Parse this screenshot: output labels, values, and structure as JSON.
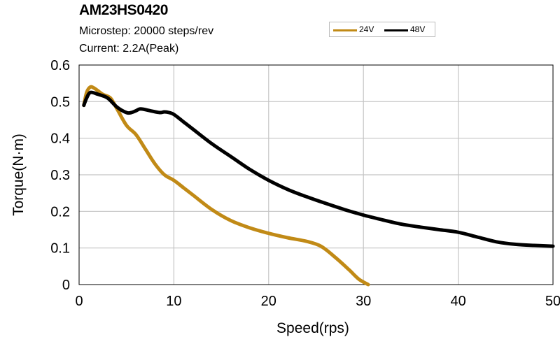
{
  "header": {
    "title": "AM23HS0420",
    "subtitle1": "Microstep: 20000 steps/rev",
    "subtitle2": "Current: 2.2A(Peak)"
  },
  "chart_data": {
    "type": "line",
    "title": "AM23HS0420",
    "xlabel": "Speed(rps)",
    "ylabel": "Torque(N·m)",
    "xlim": [
      0,
      50
    ],
    "ylim": [
      0,
      0.6
    ],
    "xticks": [
      0,
      10,
      20,
      30,
      40,
      50
    ],
    "xtick_labels": [
      "0",
      "10",
      "20",
      "30",
      "40",
      "50"
    ],
    "yticks": [
      0,
      0.1,
      0.2,
      0.3,
      0.4,
      0.5,
      0.6
    ],
    "ytick_labels": [
      "0",
      "0.1",
      "0.2",
      "0.3",
      "0.4",
      "0.5",
      "0.6"
    ],
    "grid": true,
    "legend_position": "top-right",
    "series": [
      {
        "name": "24V",
        "color": "#c18a16",
        "x": [
          0.5,
          0.8,
          1.2,
          1.7,
          2.5,
          3.3,
          4.0,
          5.0,
          6.0,
          7.0,
          8.0,
          9.0,
          10.0,
          11.0,
          12.0,
          14.0,
          16.0,
          18.0,
          20.0,
          22.0,
          24.0,
          25.5,
          27.0,
          28.5,
          29.5,
          30.5
        ],
        "values": [
          0.49,
          0.525,
          0.54,
          0.535,
          0.52,
          0.51,
          0.48,
          0.435,
          0.41,
          0.37,
          0.33,
          0.3,
          0.285,
          0.265,
          0.245,
          0.205,
          0.175,
          0.155,
          0.14,
          0.128,
          0.118,
          0.105,
          0.075,
          0.04,
          0.015,
          0.0
        ]
      },
      {
        "name": "48V",
        "color": "#000000",
        "x": [
          0.5,
          0.8,
          1.2,
          2.0,
          3.0,
          4.0,
          5.0,
          5.5,
          6.0,
          6.5,
          7.5,
          8.5,
          9.0,
          9.5,
          10.0,
          11.0,
          12.0,
          14.0,
          16.0,
          18.0,
          20.0,
          22.0,
          24.0,
          26.0,
          28.0,
          30.0,
          32.0,
          34.0,
          36.0,
          38.0,
          40.0,
          42.0,
          44.0,
          46.0,
          48.0,
          50.0
        ],
        "values": [
          0.49,
          0.51,
          0.525,
          0.52,
          0.51,
          0.485,
          0.47,
          0.47,
          0.475,
          0.48,
          0.475,
          0.47,
          0.472,
          0.47,
          0.465,
          0.445,
          0.425,
          0.385,
          0.35,
          0.315,
          0.285,
          0.26,
          0.24,
          0.222,
          0.205,
          0.19,
          0.177,
          0.165,
          0.157,
          0.15,
          0.143,
          0.13,
          0.117,
          0.11,
          0.107,
          0.105
        ]
      }
    ]
  }
}
